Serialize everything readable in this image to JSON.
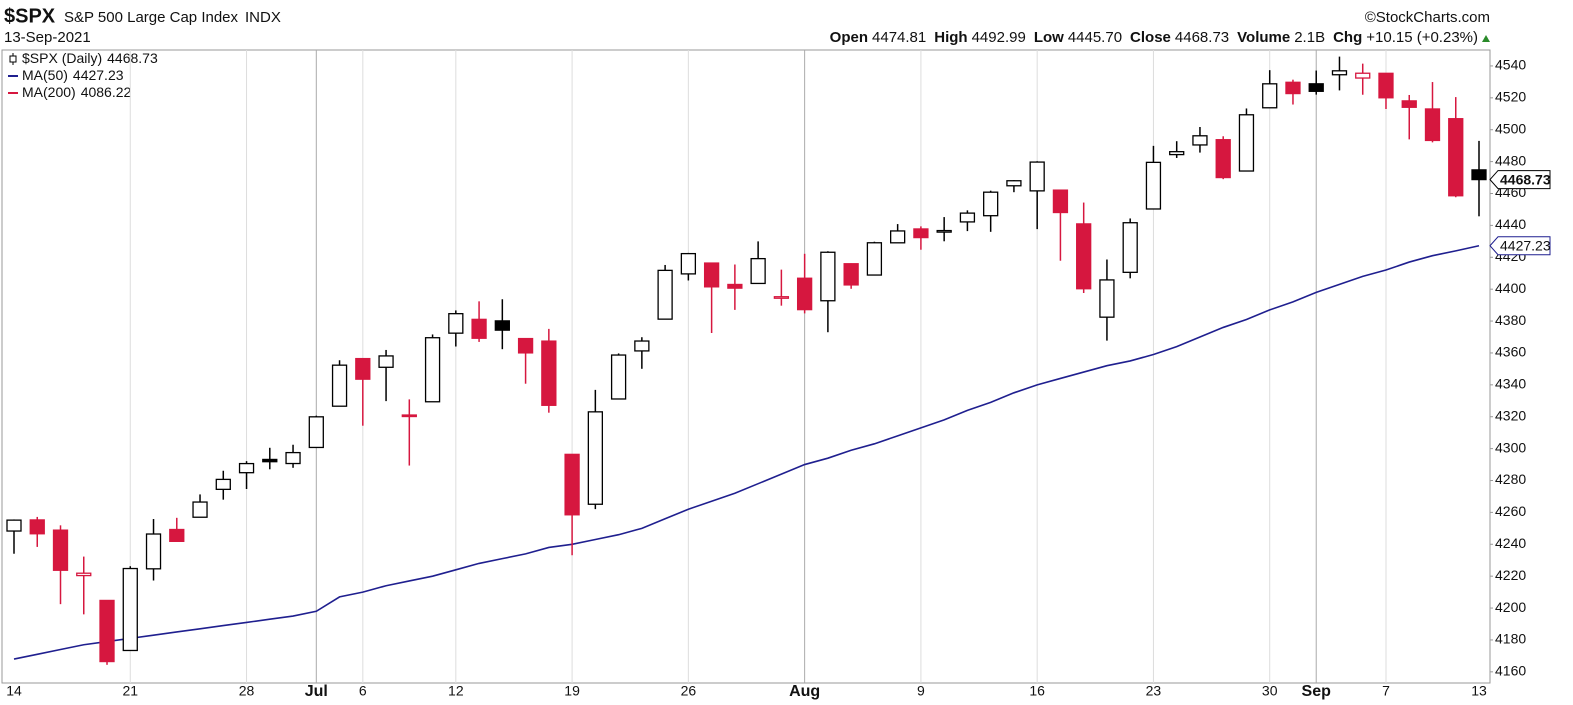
{
  "header": {
    "symbol": "$SPX",
    "name": "S&P 500 Large Cap Index",
    "exchange": "INDX",
    "date": "13-Sep-2021",
    "source": "©StockCharts.com",
    "stats": [
      {
        "label": "Open",
        "value": "4474.81"
      },
      {
        "label": "High",
        "value": "4492.99"
      },
      {
        "label": "Low",
        "value": "4445.70"
      },
      {
        "label": "Close",
        "value": "4468.73"
      },
      {
        "label": "Volume",
        "value": "2.1B"
      },
      {
        "label": "Chg",
        "value": "+10.15 (+0.23%)"
      }
    ]
  },
  "chart_data": {
    "type": "candlestick",
    "legend": [
      {
        "name": "$SPX (Daily)",
        "value": 4468.73,
        "color": "#000000"
      },
      {
        "name": "MA(50)",
        "value": 4427.23,
        "color": "#1f1f8f"
      },
      {
        "name": "MA(200)",
        "value": 4086.22,
        "color": "#d6173f"
      }
    ],
    "categories": [
      "14",
      null,
      null,
      null,
      null,
      "21",
      null,
      null,
      null,
      null,
      "28",
      null,
      null,
      "Jul",
      null,
      "6",
      null,
      null,
      null,
      "12",
      null,
      null,
      null,
      null,
      "19",
      null,
      null,
      null,
      null,
      "26",
      null,
      null,
      null,
      null,
      "Aug",
      null,
      null,
      null,
      null,
      "9",
      null,
      null,
      null,
      null,
      "16",
      null,
      null,
      null,
      null,
      "23",
      null,
      null,
      null,
      null,
      "30",
      null,
      "Sep",
      null,
      null,
      "7",
      null,
      null,
      null,
      "13"
    ],
    "month_starts": [
      "Jul",
      "Aug",
      "Sep"
    ],
    "open": [
      4248.31,
      4255.28,
      4248.87,
      4220.37,
      4204.78,
      4173.4,
      4224.61,
      4249.27,
      4256.97,
      4274.45,
      4284.9,
      4293.21,
      4290.65,
      4300.73,
      4326.6,
      4356.46,
      4351.01,
      4321.07,
      4329.38,
      4372.41,
      4381.07,
      4380.11,
      4369.02,
      4367.43,
      4296.4,
      4265.11,
      4331.13,
      4361.27,
      4381.2,
      4409.58,
      4416.38,
      4402.95,
      4403.59,
      4395.12,
      4406.86,
      4392.74,
      4415.95,
      4408.86,
      4429.07,
      4437.77,
      4435.79,
      4442.18,
      4446.08,
      4464.84,
      4461.65,
      4462.12,
      4440.94,
      4382.44,
      4410.56,
      4450.29,
      4484.4,
      4490.45,
      4493.75,
      4474.1,
      4513.76,
      4529.75,
      4528.8,
      4534.48,
      4532.42,
      4535.38,
      4518.09,
      4513.02,
      4506.92,
      4474.81
    ],
    "high": [
      4255.59,
      4257.16,
      4251.89,
      4232.29,
      4204.78,
      4226.24,
      4255.84,
      4256.6,
      4271.28,
      4286.12,
      4292.14,
      4300.52,
      4302.43,
      4320.66,
      4355.43,
      4356.46,
      4361.88,
      4330.88,
      4371.6,
      4386.68,
      4392.37,
      4393.68,
      4369.02,
      4375.09,
      4296.4,
      4336.84,
      4359.7,
      4369.87,
      4415.18,
      4422.73,
      4416.38,
      4415.47,
      4429.97,
      4412.25,
      4422.18,
      4423.79,
      4416.17,
      4429.76,
      4440.82,
      4439.39,
      4445.21,
      4449.44,
      4461.77,
      4468.37,
      4480.26,
      4462.12,
      4454.32,
      4418.61,
      4444.35,
      4489.88,
      4492.81,
      4501.71,
      4495.9,
      4513.33,
      4537.36,
      4531.39,
      4537.11,
      4545.85,
      4541.45,
      4535.38,
      4521.79,
      4529.9,
      4520.47,
      4492.99
    ],
    "low": [
      4234.07,
      4238.35,
      4202.45,
      4196.05,
      4164.4,
      4173.4,
      4217.27,
      4241.43,
      4256.97,
      4267.98,
      4274.67,
      4287.04,
      4287.96,
      4300.73,
      4326.6,
      4314.37,
      4329.79,
      4289.37,
      4329.38,
      4364.03,
      4366.92,
      4362.36,
      4340.7,
      4322.53,
      4233.13,
      4262.05,
      4331.13,
      4350.06,
      4381.2,
      4405.45,
      4372.51,
      4387.01,
      4403.59,
      4389.65,
      4384.81,
      4373.0,
      4400.23,
      4408.86,
      4429.07,
      4424.74,
      4430.03,
      4436.42,
      4435.96,
      4460.82,
      4437.66,
      4417.83,
      4397.59,
      4367.73,
      4406.8,
      4450.29,
      4482.28,
      4485.66,
      4468.99,
      4474.1,
      4513.76,
      4515.8,
      4522.02,
      4524.66,
      4521.94,
      4513.0,
      4493.95,
      4492.07,
      4457.66,
      4445.7
    ],
    "close": [
      4255.15,
      4246.59,
      4223.7,
      4221.86,
      4166.45,
      4224.79,
      4246.44,
      4241.84,
      4266.49,
      4280.7,
      4290.61,
      4291.8,
      4297.5,
      4319.94,
      4352.34,
      4343.54,
      4358.13,
      4320.82,
      4369.55,
      4384.63,
      4369.21,
      4374.3,
      4360.03,
      4327.16,
      4258.49,
      4323.06,
      4358.69,
      4367.48,
      4411.79,
      4422.3,
      4401.46,
      4400.64,
      4419.15,
      4395.26,
      4387.16,
      4423.15,
      4402.66,
      4429.1,
      4436.52,
      4432.35,
      4436.75,
      4447.7,
      4460.83,
      4468.0,
      4479.71,
      4448.08,
      4400.27,
      4405.8,
      4441.67,
      4479.53,
      4486.23,
      4496.19,
      4470.0,
      4509.37,
      4528.79,
      4522.68,
      4524.09,
      4536.95,
      4535.43,
      4520.03,
      4514.07,
      4493.28,
      4458.58,
      4468.73
    ],
    "up_color": "#000000",
    "down_color": "#d6173f",
    "price_tag": 4468.73,
    "lines": [
      {
        "name": "MA(50)",
        "color": "#1f1f8f",
        "tag": 4427.23,
        "values": [
          4168,
          4171,
          4174,
          4177,
          4179,
          4181,
          4183,
          4185,
          4187,
          4189,
          4191,
          4193,
          4195,
          4198,
          4207,
          4210,
          4214,
          4217,
          4220,
          4224,
          4228,
          4231,
          4234,
          4238,
          4240,
          4243,
          4246,
          4250,
          4256,
          4262,
          4267,
          4272,
          4278,
          4284,
          4290,
          4294,
          4299,
          4303,
          4308,
          4313,
          4318,
          4324,
          4329,
          4335,
          4340,
          4344,
          4348,
          4352,
          4355,
          4359,
          4364,
          4370,
          4376,
          4381,
          4387,
          4392,
          4398,
          4403,
          4408,
          4412,
          4417,
          4421,
          4424,
          4427.23
        ]
      }
    ],
    "ylim": [
      4153,
      4550
    ],
    "yticks": [
      4160,
      4180,
      4200,
      4220,
      4240,
      4260,
      4280,
      4300,
      4320,
      4340,
      4360,
      4380,
      4400,
      4420,
      4440,
      4460,
      4480,
      4500,
      4520,
      4540
    ],
    "grid": "vertical"
  }
}
